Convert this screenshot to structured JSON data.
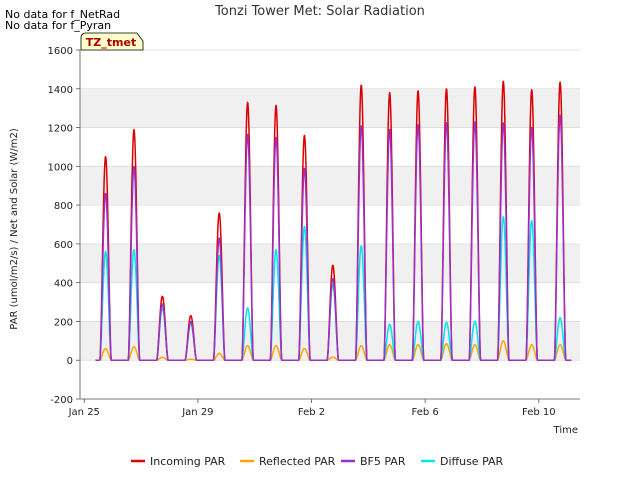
{
  "chart_data": {
    "type": "line",
    "title": "Tonzi Tower Met: Solar Radiation",
    "xlabel": "Time",
    "ylabel": "PAR (umol/m2/s) / Net and Solar (W/m2)",
    "ylim": [
      -200,
      1600
    ],
    "yticks": [
      -200,
      0,
      200,
      400,
      600,
      800,
      1000,
      1200,
      1400,
      1600
    ],
    "xlim": [
      0,
      17.6
    ],
    "xticks": [
      {
        "day": 0.15,
        "label": "Jan 25"
      },
      {
        "day": 4.15,
        "label": "Jan 29"
      },
      {
        "day": 8.15,
        "label": "Feb 2"
      },
      {
        "day": 12.15,
        "label": "Feb 6"
      },
      {
        "day": 16.15,
        "label": "Feb 10"
      }
    ],
    "site_badge": "TZ_tmet",
    "no_data_notes": [
      "No data for f_NetRad",
      "No data for f_Pyran"
    ],
    "x_unit": "days since Jan 25",
    "daily_peaks": {
      "noon_day": [
        0.9,
        1.9,
        2.9,
        3.9,
        4.9,
        5.9,
        6.9,
        7.9,
        8.9,
        9.9,
        10.9,
        11.9,
        12.9,
        13.9,
        14.9,
        15.9,
        16.9
      ],
      "incoming_par": [
        1050,
        1190,
        330,
        230,
        760,
        1330,
        1315,
        1160,
        490,
        1420,
        1380,
        1390,
        1400,
        1410,
        1440,
        1395,
        1435
      ],
      "reflected_par": [
        60,
        70,
        15,
        5,
        35,
        75,
        75,
        60,
        15,
        75,
        80,
        80,
        85,
        80,
        100,
        80,
        80
      ],
      "bf5_par": [
        860,
        1000,
        290,
        200,
        630,
        1165,
        1150,
        990,
        420,
        1210,
        1190,
        1215,
        1225,
        1230,
        1225,
        1200,
        1265
      ],
      "diffuse_par": [
        560,
        570,
        270,
        190,
        540,
        270,
        570,
        690,
        390,
        590,
        185,
        200,
        195,
        200,
        740,
        720,
        220
      ]
    },
    "series": [
      {
        "name": "Incoming PAR",
        "color": "#dd0000"
      },
      {
        "name": "Reflected PAR",
        "color": "#ffa500"
      },
      {
        "name": "BF5 PAR",
        "color": "#9932cc"
      },
      {
        "name": "Diffuse PAR",
        "color": "#00e5ee"
      }
    ]
  }
}
